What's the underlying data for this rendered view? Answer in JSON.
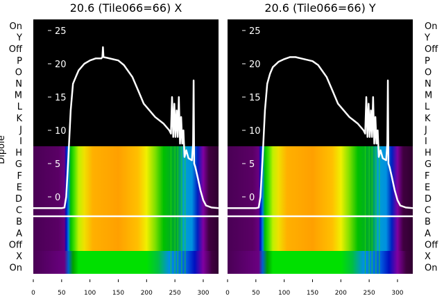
{
  "chart_data": [
    {
      "type": "line",
      "title": "20.6 (Tile066=66) X",
      "ylabel": "Dipole",
      "xlim": [
        0,
        327
      ],
      "xticks": [
        "0",
        "50",
        "100",
        "150",
        "200",
        "250",
        "300"
      ],
      "inner_yticks": [
        "25",
        "20",
        "15",
        "10",
        "5",
        "0"
      ],
      "row_labels": [
        "On",
        "Y",
        "Off",
        "P",
        "O",
        "N",
        "M",
        "L",
        "K",
        "J",
        "I",
        "H",
        "G",
        "F",
        "E",
        "D",
        "C",
        "B",
        "A",
        "Off",
        "X",
        "On"
      ],
      "x": [
        0,
        50,
        55,
        58,
        62,
        66,
        70,
        75,
        80,
        90,
        100,
        110,
        120,
        122,
        123,
        124,
        130,
        150,
        160,
        175,
        185,
        195,
        205,
        215,
        230,
        240,
        243,
        245,
        247,
        249,
        251,
        253,
        255,
        257,
        259,
        261,
        263,
        265,
        267,
        270,
        274,
        280,
        282,
        283,
        284,
        286,
        290,
        295,
        300,
        305,
        315,
        327
      ],
      "y": [
        -1.7,
        -1.7,
        -1.6,
        0,
        6,
        13,
        17,
        18,
        19,
        20,
        20.5,
        20.8,
        20.8,
        21,
        22.5,
        21,
        20.9,
        20.5,
        19.8,
        18,
        16,
        14,
        13,
        12,
        11,
        10,
        9.5,
        15,
        9,
        14,
        9,
        13,
        9,
        15,
        8,
        12,
        8,
        10,
        6,
        7,
        5.8,
        5.5,
        8,
        17.5,
        5,
        4.5,
        3,
        1,
        -0.5,
        -1.3,
        -1.6,
        -1.7
      ]
    },
    {
      "type": "line",
      "title": "20.6 (Tile066=66) Y",
      "ylabel": "",
      "xlim": [
        0,
        327
      ],
      "xticks": [
        "0",
        "50",
        "100",
        "150",
        "200",
        "250",
        "300"
      ],
      "inner_yticks": [
        "25",
        "20",
        "15",
        "10",
        "5",
        "0"
      ],
      "row_labels": [
        "On",
        "Y",
        "Off",
        "P",
        "O",
        "N",
        "M",
        "L",
        "K",
        "J",
        "I",
        "H",
        "G",
        "F",
        "E",
        "D",
        "C",
        "B",
        "A",
        "Off",
        "X",
        "On"
      ],
      "x": [
        0,
        50,
        55,
        58,
        62,
        66,
        70,
        75,
        80,
        90,
        100,
        110,
        120,
        125,
        130,
        150,
        160,
        175,
        185,
        195,
        205,
        215,
        230,
        240,
        243,
        245,
        247,
        249,
        251,
        253,
        255,
        257,
        259,
        261,
        263,
        265,
        267,
        270,
        274,
        280,
        282,
        283,
        284,
        286,
        290,
        295,
        300,
        305,
        315,
        327
      ],
      "y": [
        -1.7,
        -1.7,
        -1.6,
        0,
        6,
        13,
        17,
        18.5,
        19.5,
        20.3,
        20.7,
        21,
        21,
        20.9,
        20.8,
        20.4,
        19.8,
        18,
        16,
        14,
        13,
        12,
        11,
        10,
        9.5,
        15,
        9,
        14,
        9,
        13,
        9,
        15,
        8,
        12,
        8,
        10,
        6,
        7,
        5.8,
        5.5,
        8,
        17.5,
        5,
        4.5,
        3,
        1,
        -0.5,
        -1.3,
        -1.6,
        -1.7
      ]
    }
  ]
}
